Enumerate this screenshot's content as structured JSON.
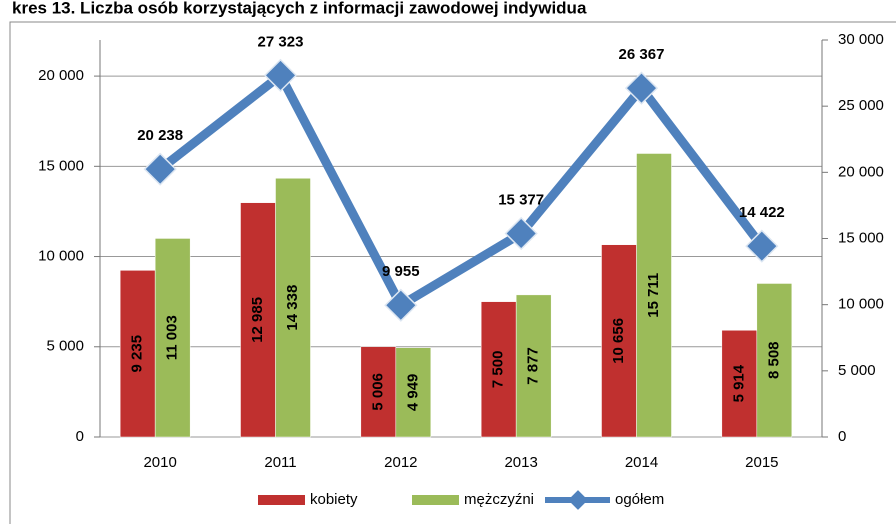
{
  "chart_data": {
    "type": "bar",
    "title": "kres 13. Liczba osób korzystających z informacji zawodowej indywidua",
    "categories": [
      "2010",
      "2011",
      "2012",
      "2013",
      "2014",
      "2015"
    ],
    "series": [
      {
        "name": "kobiety",
        "color": "#c0302f",
        "values": [
          9235,
          12985,
          5006,
          7500,
          10656,
          5914
        ],
        "value_labels": [
          "9 235",
          "12 985",
          "5 006",
          "7 500",
          "10 656",
          "5 914"
        ]
      },
      {
        "name": "mężczyźni",
        "color": "#9bbb59",
        "values": [
          11003,
          14338,
          4949,
          7877,
          15711,
          8508
        ],
        "value_labels": [
          "11 003",
          "14 338",
          "4 949",
          "7 877",
          "15 711",
          "8 508"
        ]
      },
      {
        "name": "ogółem",
        "color": "#4f81bd",
        "type": "line",
        "axis": "y2",
        "values": [
          20238,
          27323,
          9955,
          15377,
          26367,
          14422
        ],
        "value_labels": [
          "20 238",
          "27 323",
          "9 955",
          "15 377",
          "26 367",
          "14 422"
        ]
      }
    ],
    "ylim": [
      0,
      22000
    ],
    "yticks": [
      0,
      {
        "value": 5000,
        "label": "5 000"
      },
      {
        "value": 10000,
        "label": "10 000"
      },
      {
        "value": 15000,
        "label": "15 000"
      },
      {
        "value": 20000,
        "label": "20 000"
      }
    ],
    "y2lim": [
      0,
      30000
    ],
    "y2ticks": [
      0,
      {
        "value": 5000,
        "label": "5 000"
      },
      {
        "value": 10000,
        "label": "10 000"
      },
      {
        "value": 15000,
        "label": "15 000"
      },
      {
        "value": 20000,
        "label": "20 000"
      },
      {
        "value": 25000,
        "label": "25 000"
      },
      {
        "value": 30000,
        "label": "30 000"
      }
    ],
    "grid": true,
    "legend": "bottom"
  }
}
